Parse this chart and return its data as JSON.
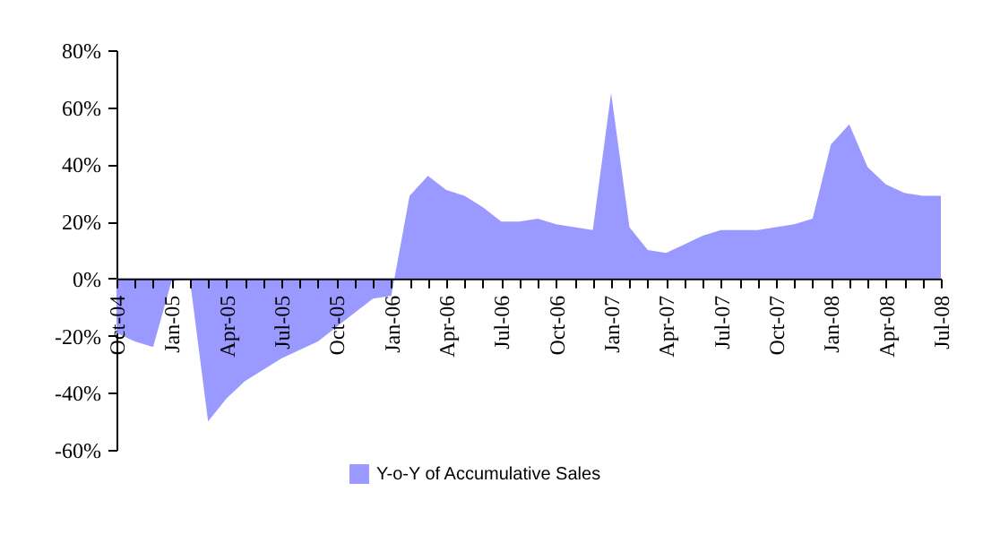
{
  "chart_data": {
    "type": "area",
    "categories": [
      "Oct-04",
      null,
      null,
      "Jan-05",
      null,
      null,
      "Apr-05",
      null,
      null,
      "Jul-05",
      null,
      null,
      "Oct-05",
      null,
      null,
      "Jan-06",
      null,
      null,
      "Apr-06",
      null,
      null,
      "Jul-06",
      null,
      null,
      "Oct-06",
      null,
      null,
      "Jan-07",
      null,
      null,
      "Apr-07",
      null,
      null,
      "Jul-07",
      null,
      null,
      "Oct-07",
      null,
      null,
      "Jan-08",
      null,
      null,
      "Apr-08",
      null,
      null,
      "Jul-08"
    ],
    "series": [
      {
        "name": "Y-o-Y of Accumulative Sales",
        "color": "#9999ff",
        "values": [
          -19,
          -22,
          -24,
          -1,
          0,
          -50,
          -42,
          -36,
          -32,
          -28,
          -25,
          -22,
          -17,
          -12,
          -7,
          -6,
          29,
          36,
          31,
          29,
          25,
          20,
          20,
          21,
          19,
          18,
          17,
          65,
          18,
          10,
          9,
          12,
          15,
          17,
          17,
          17,
          18,
          19,
          21,
          47,
          54,
          39,
          33,
          30,
          29,
          29
        ]
      }
    ],
    "ylim": [
      -60,
      80
    ],
    "yticks": [
      {
        "value": -60,
        "label": "-60%"
      },
      {
        "value": -40,
        "label": "-40%"
      },
      {
        "value": -20,
        "label": "-20%"
      },
      {
        "value": 0,
        "label": "0%"
      },
      {
        "value": 20,
        "label": "20%"
      },
      {
        "value": 40,
        "label": "40%"
      },
      {
        "value": 60,
        "label": "60%"
      },
      {
        "value": 80,
        "label": "80%"
      }
    ],
    "legend": "bottom",
    "grid": false
  }
}
